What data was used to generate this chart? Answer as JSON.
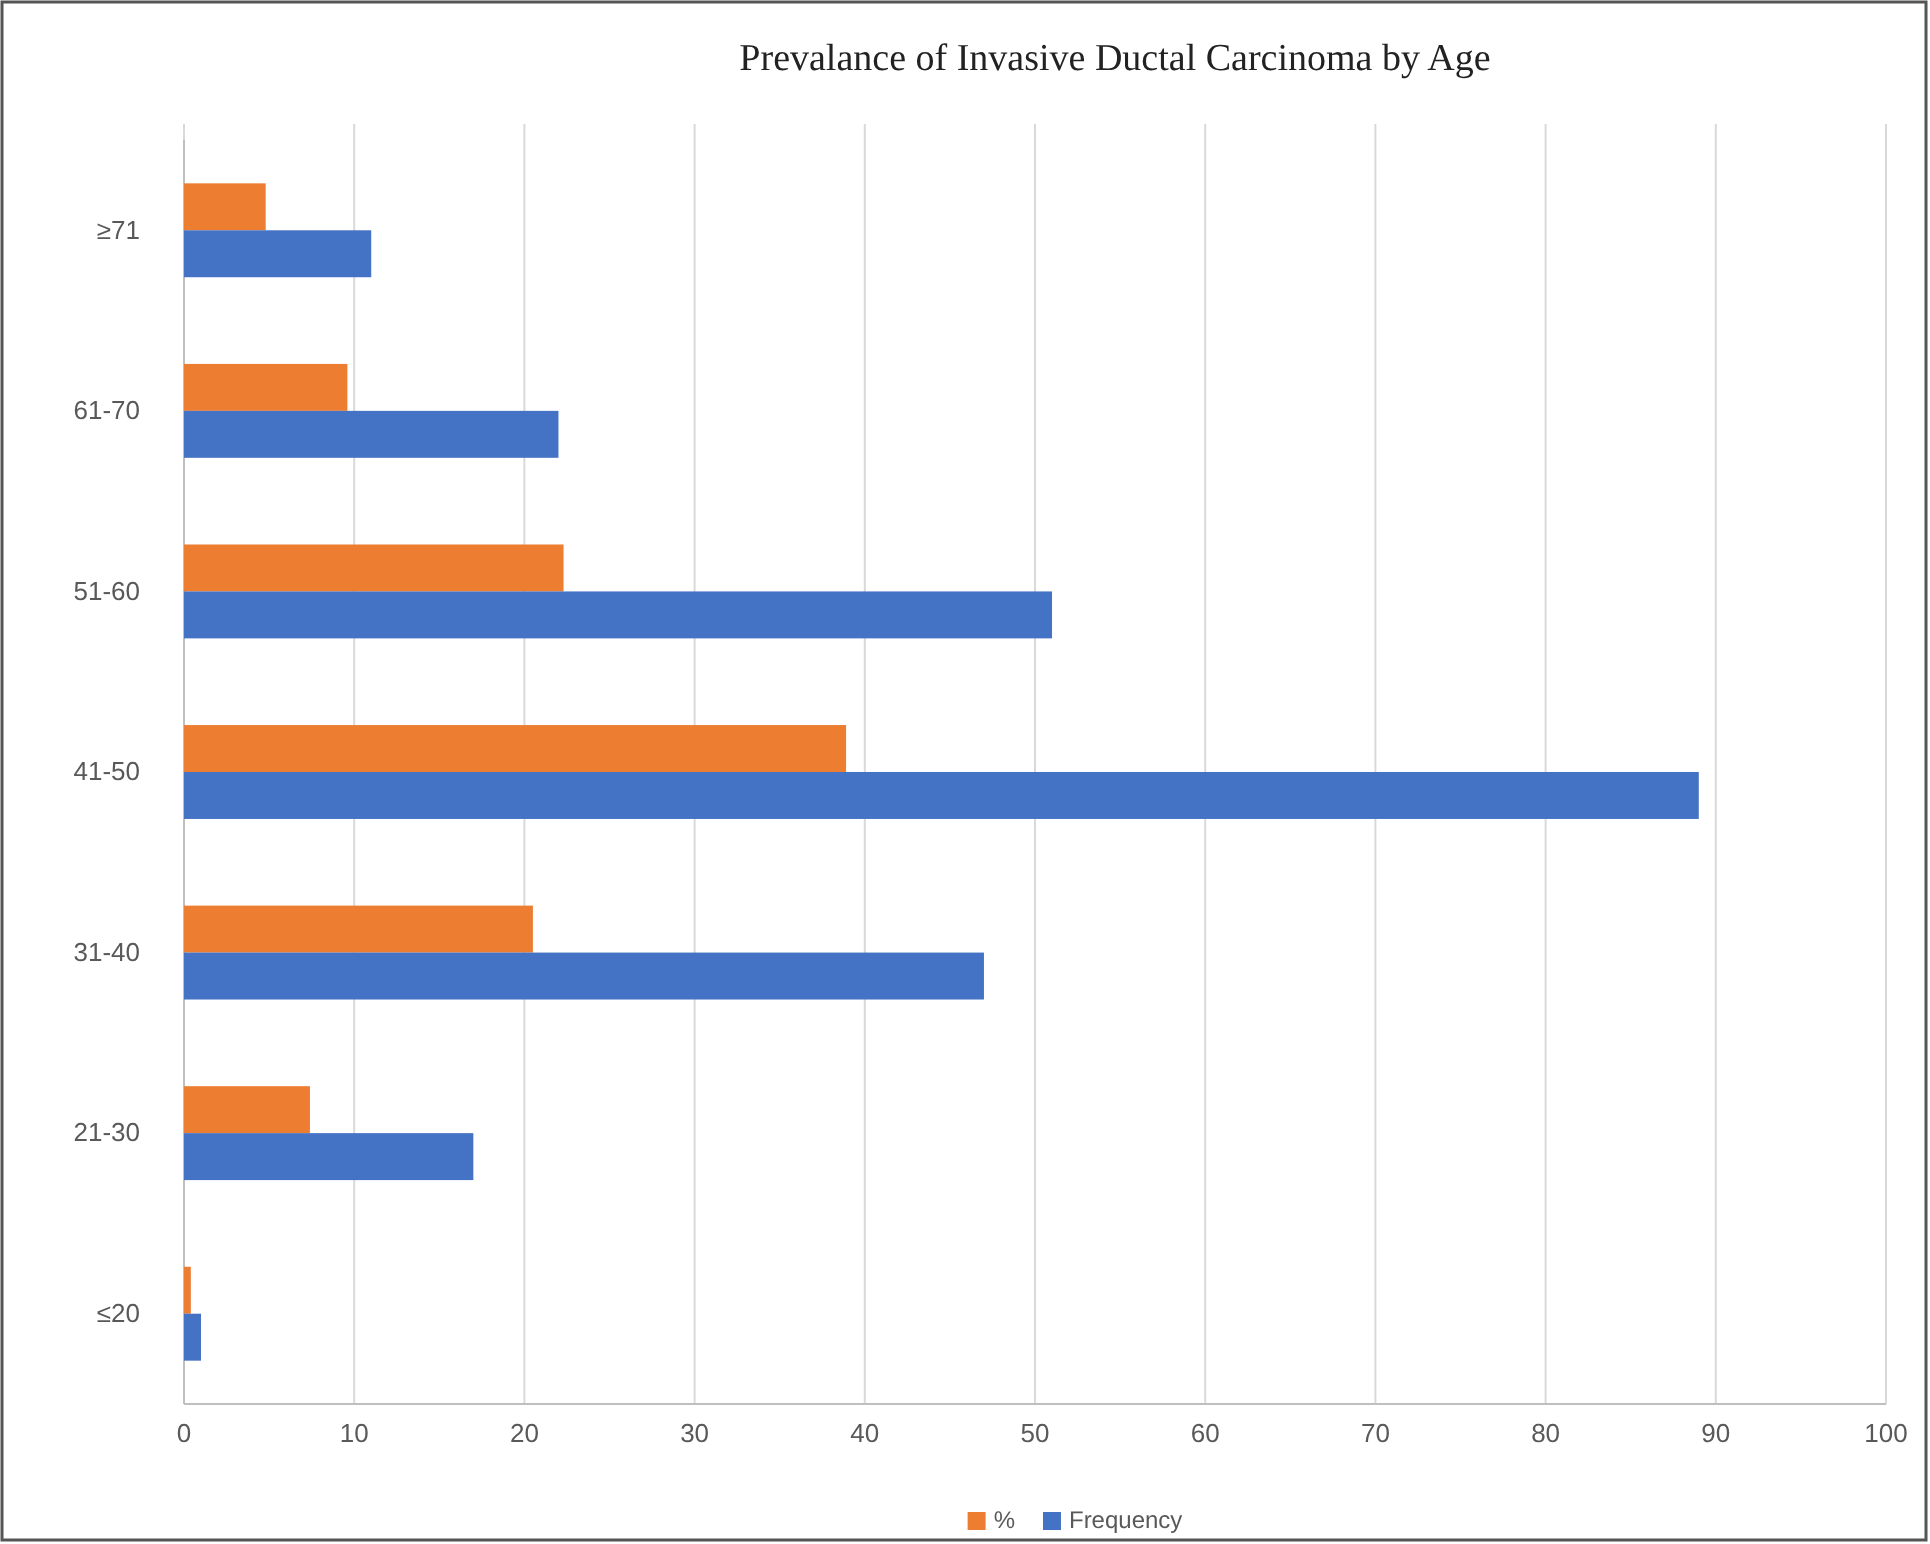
{
  "chart_data": {
    "type": "bar",
    "orientation": "horizontal",
    "title": "Prevalance of Invasive Ductal Carcinoma by Age",
    "categories": [
      "≥71",
      "61-70",
      "51-60",
      "41-50",
      "31-40",
      "21-30",
      "≤20"
    ],
    "series": [
      {
        "name": "%",
        "color": "#ed7d31",
        "values": [
          4.8,
          9.6,
          22.3,
          38.9,
          20.5,
          7.4,
          0.4
        ]
      },
      {
        "name": "Frequency",
        "color": "#4472c4",
        "values": [
          11,
          22,
          51,
          89,
          47,
          17,
          1
        ]
      }
    ],
    "xlim": [
      0,
      100
    ],
    "xticks": [
      0,
      10,
      20,
      30,
      40,
      50,
      60,
      70,
      80,
      90,
      100
    ],
    "grid": "x",
    "legend": "bottom"
  }
}
